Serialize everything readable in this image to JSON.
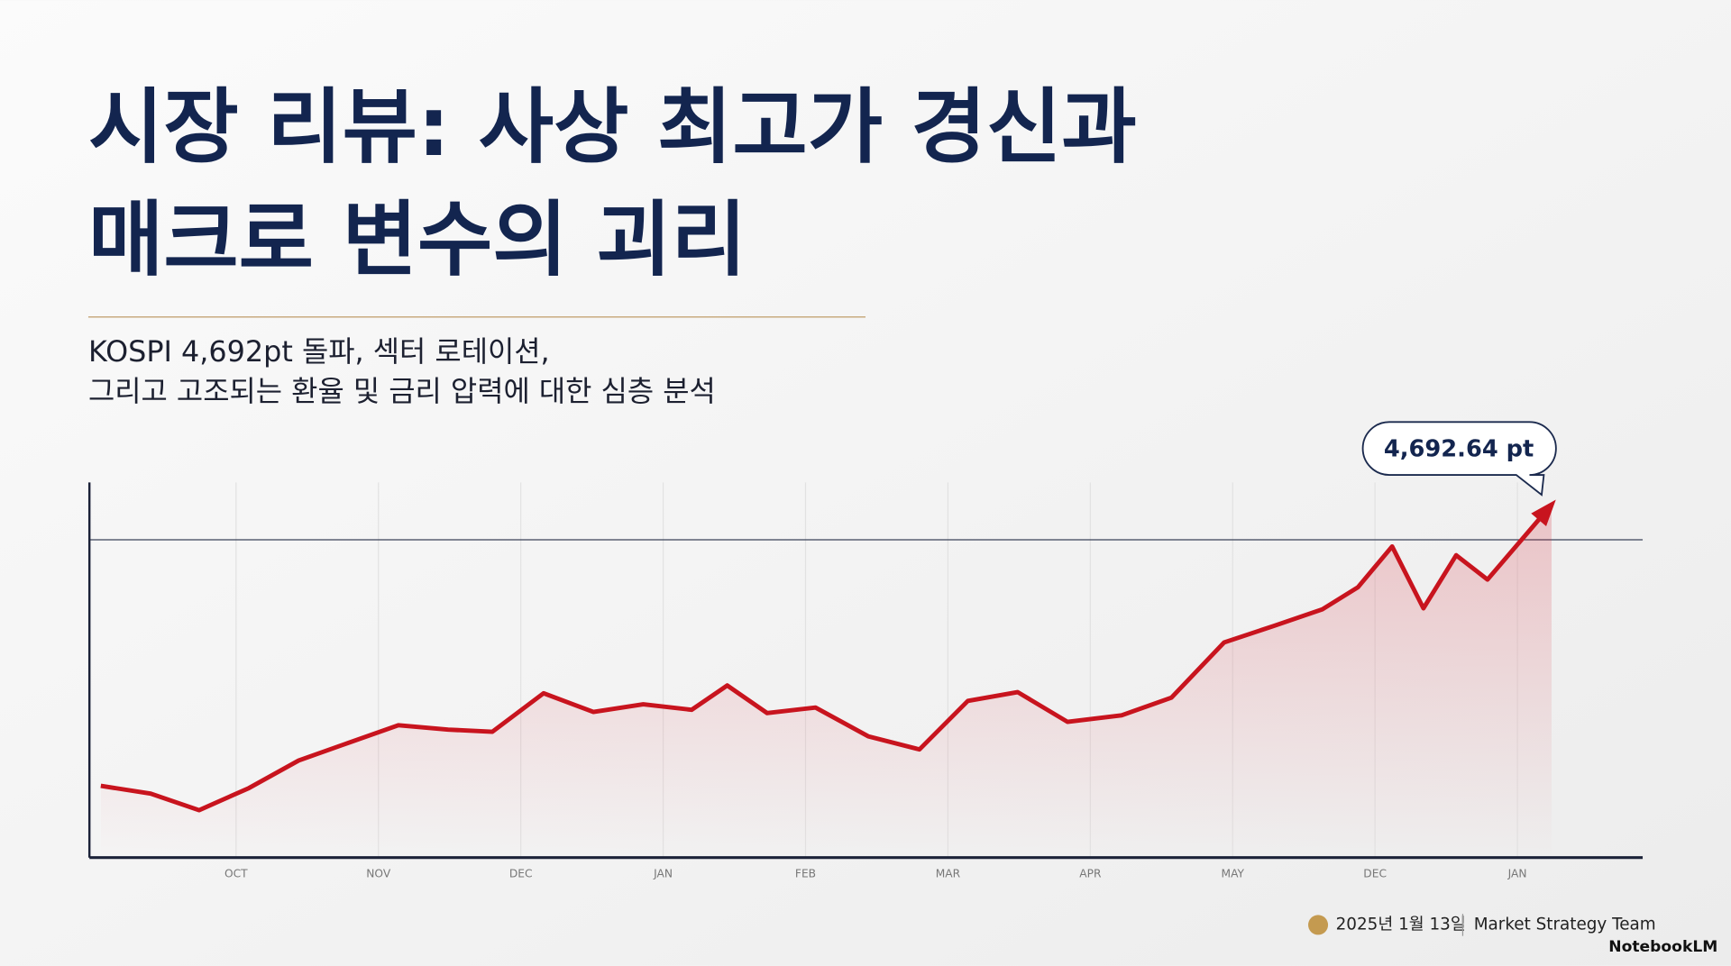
{
  "chart_data": {
    "type": "line",
    "title_lines": [
      "시장 리뷰: 사상 최고가 경신과",
      "매크로 변수의 괴리"
    ],
    "subtitle_lines": [
      "KOSPI 4,692pt 돌파, 섹터 로테이션,",
      "그리고 고조되는 환율 및 금리 압력에 대한 심층 분석"
    ],
    "annotation": "4,692.64 pt",
    "x": [
      -0.95,
      -0.6,
      -0.26,
      0.09,
      0.44,
      0.79,
      1.14,
      1.49,
      1.8,
      2.16,
      2.51,
      2.86,
      3.2,
      3.45,
      3.73,
      4.07,
      4.44,
      4.8,
      5.14,
      5.49,
      5.84,
      6.22,
      6.57,
      6.94,
      7.29,
      7.63,
      7.88,
      8.12,
      8.34,
      8.57,
      8.79,
      9.24
    ],
    "values": [
      2707,
      2652,
      2535,
      2691,
      2886,
      3011,
      3135,
      3104,
      3089,
      3361,
      3229,
      3283,
      3244,
      3416,
      3221,
      3260,
      3057,
      2964,
      3307,
      3369,
      3159,
      3205,
      3330,
      3720,
      3837,
      3954,
      4110,
      4398,
      3961,
      4336,
      4164,
      4692.64
    ],
    "color": "#c8141e",
    "reference_line": 4445,
    "xlim": [
      -1.03,
      9.88
    ],
    "ylim": [
      2200,
      4850
    ],
    "xticks": [
      {
        "value": 0,
        "label": "OCT"
      },
      {
        "value": 1,
        "label": "NOV"
      },
      {
        "value": 2,
        "label": "DEC"
      },
      {
        "value": 3,
        "label": "JAN"
      },
      {
        "value": 4,
        "label": "FEB"
      },
      {
        "value": 5,
        "label": "MAR"
      },
      {
        "value": 6,
        "label": "APR"
      },
      {
        "value": 7,
        "label": "MAY"
      },
      {
        "value": 8,
        "label": "DEC"
      },
      {
        "value": 9,
        "label": "JAN"
      }
    ],
    "grid": true,
    "footer": {
      "date": "2025년 1월 13일",
      "team": "Market Strategy Team",
      "brand": "NotebookLM"
    }
  }
}
